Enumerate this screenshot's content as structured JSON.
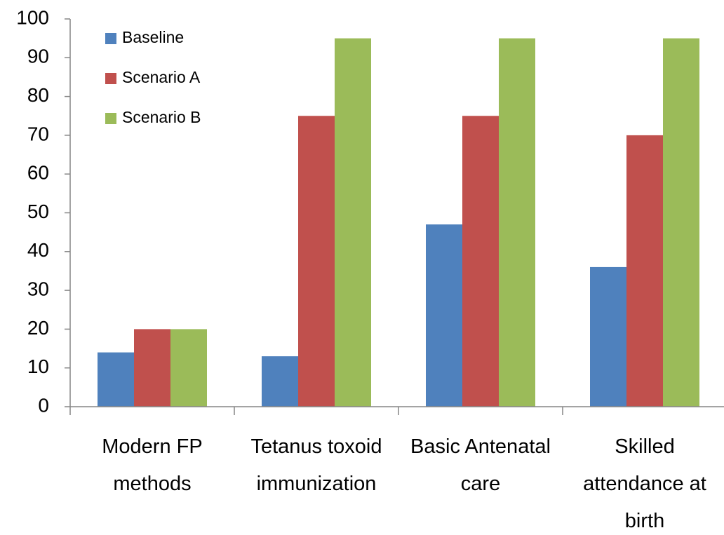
{
  "chart_data": {
    "type": "bar",
    "categories": [
      "Modern FP\nmethods",
      "Tetanus toxoid\nimmunization",
      "Basic Antenatal\ncare",
      "Skilled\nattendance at\nbirth"
    ],
    "series": [
      {
        "name": "Baseline",
        "color": "#4f81bd",
        "values": [
          14,
          13,
          47,
          36
        ]
      },
      {
        "name": "Scenario A",
        "color": "#c0504d",
        "values": [
          20,
          75,
          75,
          70
        ]
      },
      {
        "name": "Scenario B",
        "color": "#9bbb59",
        "values": [
          20,
          95,
          95,
          95
        ]
      }
    ],
    "ylim": [
      0,
      100
    ],
    "yticks": [
      0,
      10,
      20,
      30,
      40,
      50,
      60,
      70,
      80,
      90,
      100
    ],
    "grid": false,
    "legend": "upper left"
  }
}
